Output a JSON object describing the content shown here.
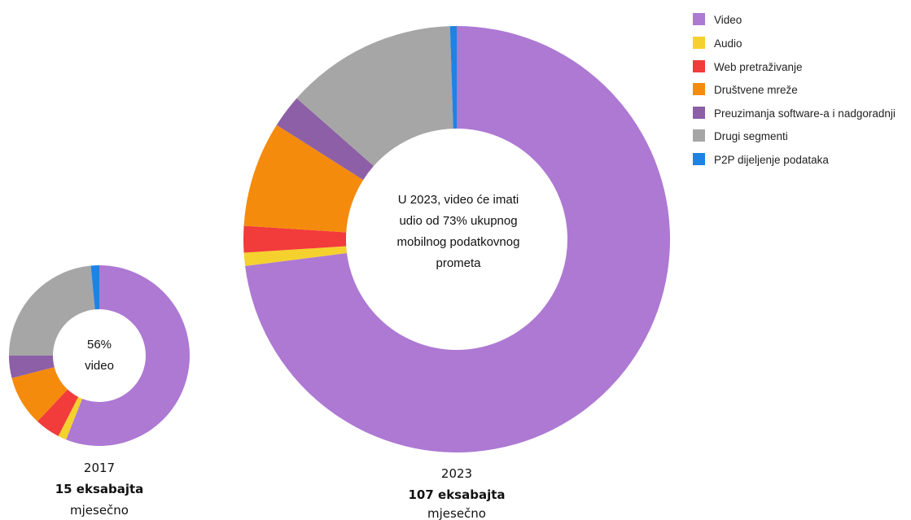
{
  "chart_data": [
    {
      "type": "donut",
      "year": "2017",
      "total": "15 eksabajta",
      "unit": "mjesečno",
      "center_lines": [
        "56%",
        "video"
      ],
      "slices": [
        {
          "name": "Video",
          "value": 56
        },
        {
          "name": "Audio",
          "value": 1.5
        },
        {
          "name": "Web pretraživanje",
          "value": 4.5
        },
        {
          "name": "Društvene mreže",
          "value": 9
        },
        {
          "name": "Preuzimanja software-a i nadgoradnji",
          "value": 4
        },
        {
          "name": "Drugi segmenti",
          "value": 23.5
        },
        {
          "name": "P2P dijeljenje podataka",
          "value": 1.5
        }
      ]
    },
    {
      "type": "donut",
      "year": "2023",
      "total": "107 eksabajta",
      "unit": "mjesečno",
      "center_lines": [
        "U 2023, video će imati",
        "udio od 73% ukupnog",
        "mobilnog podatkovnog",
        "prometa"
      ],
      "slices": [
        {
          "name": "Video",
          "value": 73
        },
        {
          "name": "Audio",
          "value": 1
        },
        {
          "name": "Web pretraživanje",
          "value": 2
        },
        {
          "name": "Društvene mreže",
          "value": 8
        },
        {
          "name": "Preuzimanja software-a i nadgoradnji",
          "value": 2.5
        },
        {
          "name": "Drugi segmenti",
          "value": 13
        },
        {
          "name": "P2P dijeljenje podataka",
          "value": 0.5
        }
      ]
    }
  ],
  "legend": [
    {
      "label": "Video",
      "color": "#ad79d3"
    },
    {
      "label": "Audio",
      "color": "#f5d12e"
    },
    {
      "label": "Web pretraživanje",
      "color": "#f23b3b"
    },
    {
      "label": "Društvene mreže",
      "color": "#f58b0c"
    },
    {
      "label": "Preuzimanja software-a i nadgoradnji",
      "color": "#8d5fa6"
    },
    {
      "label": "Drugi segmenti",
      "color": "#a6a6a6"
    },
    {
      "label": "P2P dijeljenje podataka",
      "color": "#1d83e5"
    }
  ]
}
